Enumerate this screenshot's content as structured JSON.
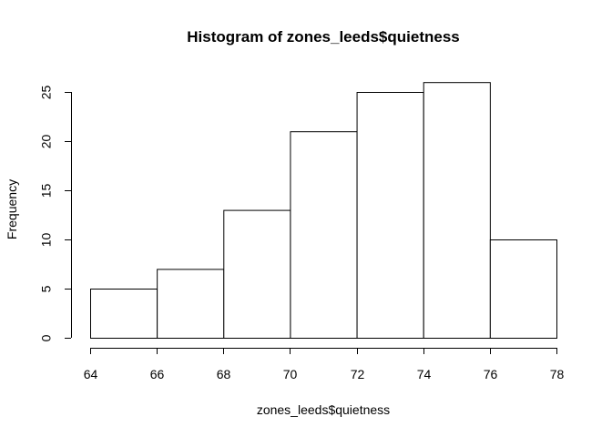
{
  "chart_data": {
    "type": "bar",
    "title": "Histogram of zones_leeds$quietness",
    "xlabel": "zones_leeds$quietness",
    "ylabel": "Frequency",
    "bins": [
      {
        "from": 64,
        "to": 66,
        "count": 5
      },
      {
        "from": 66,
        "to": 68,
        "count": 7
      },
      {
        "from": 68,
        "to": 70,
        "count": 13
      },
      {
        "from": 70,
        "to": 72,
        "count": 21
      },
      {
        "from": 72,
        "to": 74,
        "count": 25
      },
      {
        "from": 74,
        "to": 76,
        "count": 26
      },
      {
        "from": 76,
        "to": 78,
        "count": 10
      }
    ],
    "xlim": [
      64,
      78
    ],
    "ylim": [
      0,
      26
    ],
    "x_ticks": [
      "64",
      "66",
      "68",
      "70",
      "72",
      "74",
      "76",
      "78"
    ],
    "y_ticks": [
      "0",
      "5",
      "10",
      "15",
      "20",
      "25"
    ],
    "grid": false,
    "legend": "none",
    "bar_fill": "#ffffff",
    "bar_stroke": "#000000"
  }
}
